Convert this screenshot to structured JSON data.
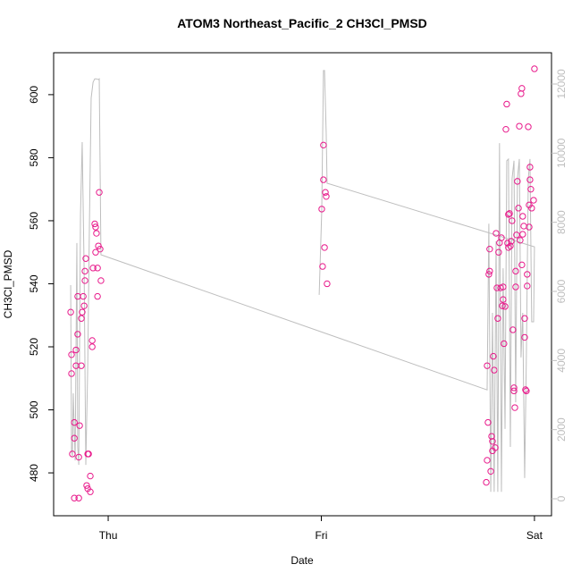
{
  "chart_data": {
    "type": "scatter",
    "title": "ATOM3 Northeast_Pacific_2 CH3Cl_PMSD",
    "xlabel": "Date",
    "ylabel": "CH3Cl_PMSD",
    "xlim": [
      -0.256,
      2.08
    ],
    "ylim": [
      466.4,
      613.3
    ],
    "y2lim": [
      -491,
      12905
    ],
    "xticks": [
      {
        "value": 0,
        "label": "Thu"
      },
      {
        "value": 1,
        "label": "Fri"
      },
      {
        "value": 2,
        "label": "Sat"
      }
    ],
    "yticks": [
      480,
      500,
      520,
      540,
      560,
      580,
      600
    ],
    "y2ticks": [
      0,
      2000,
      4000,
      6000,
      8000,
      10000,
      12000
    ],
    "series": [
      {
        "type": "line",
        "axis": "y2",
        "color": "#bebebe",
        "x": [
          0.99,
          1.002,
          1.01,
          1.015,
          1.023,
          1.027,
          2.0,
          1.996,
          1.987,
          1.979,
          1.971,
          1.962,
          1.954,
          1.945,
          1.937,
          1.929,
          1.92,
          1.912,
          1.904,
          1.895,
          1.887,
          1.878,
          1.87,
          1.862,
          1.853,
          1.845,
          1.836,
          1.828,
          1.82,
          1.811,
          1.803,
          1.795,
          1.786,
          1.778,
          -0.034,
          -0.042,
          -0.046,
          -0.055,
          -0.063,
          -0.071,
          -0.08,
          -0.088,
          -0.096,
          -0.105,
          -0.113,
          -0.122,
          -0.13,
          -0.138,
          -0.143,
          -0.147,
          -0.155,
          -0.164,
          -0.168,
          -0.172,
          -0.176
        ],
        "values": [
          5900,
          8330,
          12390,
          12390,
          10550,
          9130,
          7290,
          5120,
          5120,
          9830,
          9260,
          4090,
          600,
          5380,
          4090,
          9830,
          9260,
          2790,
          9780,
          9260,
          1500,
          9830,
          9780,
          2020,
          6670,
          200,
          10290,
          200,
          7450,
          200,
          5380,
          200,
          7960,
          3150,
          7060,
          12150,
          12130,
          12150,
          12150,
          12050,
          11590,
          7960,
          3830,
          980,
          6670,
          10320,
          8220,
          980,
          1500,
          7400,
          1110,
          3050,
          1240,
          1370,
          6180
        ]
      },
      {
        "type": "scatter",
        "color": "#e8198b",
        "x": [
          -0.176,
          -0.172,
          -0.172,
          -0.168,
          -0.159,
          -0.159,
          -0.159,
          -0.151,
          -0.151,
          -0.143,
          -0.143,
          -0.138,
          -0.138,
          -0.134,
          -0.126,
          -0.126,
          -0.122,
          -0.117,
          -0.113,
          -0.109,
          -0.109,
          -0.105,
          -0.101,
          -0.096,
          -0.096,
          -0.092,
          -0.084,
          -0.084,
          -0.075,
          -0.075,
          -0.071,
          -0.063,
          -0.059,
          -0.059,
          -0.055,
          -0.05,
          -0.05,
          -0.046,
          -0.042,
          -0.038,
          -0.034,
          1.002,
          1.006,
          1.01,
          1.01,
          1.015,
          1.019,
          1.023,
          1.027,
          1.774,
          1.778,
          1.778,
          1.782,
          1.786,
          1.79,
          1.79,
          1.795,
          1.799,
          1.803,
          1.803,
          1.807,
          1.811,
          1.816,
          1.82,
          1.824,
          1.828,
          1.832,
          1.836,
          1.841,
          1.845,
          1.849,
          1.853,
          1.853,
          1.857,
          1.862,
          1.866,
          1.87,
          1.874,
          1.878,
          1.878,
          1.883,
          1.887,
          1.891,
          1.895,
          1.899,
          1.904,
          1.908,
          1.904,
          1.912,
          1.912,
          1.916,
          1.92,
          1.925,
          1.929,
          1.933,
          1.937,
          1.941,
          1.941,
          1.945,
          1.945,
          1.95,
          1.954,
          1.954,
          1.958,
          1.962,
          1.966,
          1.966,
          1.971,
          1.975,
          1.975,
          1.979,
          1.979,
          1.983,
          1.987,
          1.996,
          2.0
        ],
        "values": [
          531,
          511.5,
          517.5,
          486,
          472,
          496,
          491,
          514,
          519,
          524,
          536,
          485,
          472,
          495,
          514,
          529,
          531,
          536,
          533,
          544,
          541,
          548,
          476,
          475,
          486,
          486,
          479,
          474,
          522,
          520,
          545,
          559,
          558,
          550,
          556,
          545,
          536,
          552,
          569,
          551,
          541,
          563.7,
          545.5,
          584,
          573,
          551.5,
          569,
          567.7,
          540,
          477,
          484,
          514,
          496,
          543,
          544,
          551,
          480.5,
          491.6,
          490,
          487,
          517,
          512.6,
          488,
          556,
          538.7,
          529,
          550,
          553,
          538.7,
          554.6,
          533,
          539,
          535,
          521,
          532.8,
          589,
          597,
          552.9,
          551.5,
          562,
          562.3,
          552,
          553.5,
          560,
          525.4,
          507,
          500.7,
          506,
          544,
          539,
          555.5,
          572.5,
          564,
          590,
          553.8,
          600.3,
          602,
          546,
          561.4,
          555.7,
          558.3,
          529,
          523,
          506.4,
          506,
          539.3,
          543,
          589.8,
          558,
          565,
          577,
          573,
          570,
          564,
          566.5,
          608.2
        ]
      }
    ]
  }
}
